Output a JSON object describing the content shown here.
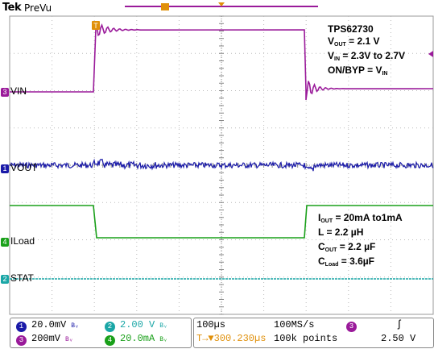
{
  "header": {
    "brand": "Tek",
    "mode": "PreVu"
  },
  "colors": {
    "ch1": "#1a1aa8",
    "ch2": "#1aa6a6",
    "ch3": "#9a1a9a",
    "ch4": "#1aa01a",
    "grid": "#999999",
    "trigger": "#e0900a"
  },
  "annotations": {
    "top": {
      "part": "TPS62730",
      "vout": {
        "sym": "V",
        "sub": "OUT",
        "rest": " = 2.1 V"
      },
      "vin": {
        "sym": "V",
        "sub": "IN",
        "rest": " = 2.3V to 2.7V"
      },
      "onbyp": {
        "pre": "ON/BYP = V",
        "sub": "IN"
      }
    },
    "bottom": {
      "iout": {
        "sym": "I",
        "sub": "OUT",
        "rest": " = 20mA to1mA"
      },
      "l": "L = 2.2 µH",
      "cout": {
        "sym": "C",
        "sub": "OUT",
        "rest": " = 2.2 µF"
      },
      "cload": {
        "sym": "C",
        "sub": "Load",
        "rest": " = 3.6µF"
      }
    }
  },
  "channel_labels": {
    "vin": {
      "num": "3",
      "text": "VIN"
    },
    "vout": {
      "num": "1",
      "text": "VOUT"
    },
    "iload": {
      "num": "4",
      "text": "ILoad"
    },
    "stat": {
      "num": "2",
      "text": "STAT"
    }
  },
  "trigger_marker": "T",
  "footer": {
    "ch1": {
      "num": "1",
      "scale": "20.0mV",
      "bw": "Bᵥ"
    },
    "ch2": {
      "num": "2",
      "scale": "2.00 V",
      "bw": "Bᵥ"
    },
    "ch3": {
      "num": "3",
      "scale": "200mV",
      "bw": "Bᵥ"
    },
    "ch4": {
      "num": "4",
      "scale": "20.0mA",
      "bw": "Bᵥ"
    },
    "timebase": "100µs",
    "sample_rate": "100MS/s",
    "trigger_pos": "T→▼300.230µs",
    "record": "100k points",
    "trig_ch": "3",
    "trig_slope": "ʃ",
    "trig_level": "2.50 V"
  }
}
